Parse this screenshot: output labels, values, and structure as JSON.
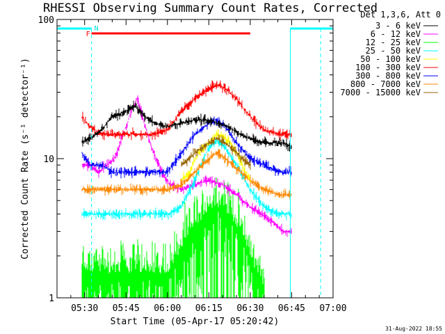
{
  "chart_data": {
    "type": "line",
    "title": "RHESSI Observing Summary Count Rates, Corrected",
    "xlabel": "Start Time (05-Apr-17 05:20:42)",
    "ylabel": "Corrected Count Rate (s⁻¹ detector⁻¹)",
    "yscale": "log",
    "ylim": [
      1,
      100
    ],
    "xlim_minutes_after_0520": [
      0,
      100
    ],
    "x_ticks": [
      {
        "label": "05:30",
        "minute": 10
      },
      {
        "label": "05:45",
        "minute": 25
      },
      {
        "label": "06:00",
        "minute": 40
      },
      {
        "label": "06:15",
        "minute": 55
      },
      {
        "label": "06:30",
        "minute": 70
      },
      {
        "label": "06:45",
        "minute": 85
      },
      {
        "label": "07:00",
        "minute": 100
      }
    ],
    "y_ticks": [
      {
        "label": "1",
        "value": 1
      },
      {
        "label": "10",
        "value": 10
      },
      {
        "label": "100",
        "value": 100
      }
    ],
    "legend_title": "Det 1,3,6, Att 0",
    "legend_position": "right",
    "data_start_minute": 9,
    "data_end_minute": 85,
    "series": [
      {
        "name": "3 - 6 keV",
        "color": "#000000",
        "x": [
          9,
          12,
          16,
          20,
          25,
          28,
          31,
          35,
          40,
          45,
          50,
          55,
          58,
          62,
          66,
          70,
          74,
          78,
          82,
          85
        ],
        "values": [
          13,
          14,
          16,
          20,
          22,
          24,
          21,
          18,
          17,
          18,
          19,
          19,
          18,
          17,
          15,
          14,
          13,
          13,
          13,
          12
        ]
      },
      {
        "name": "6 - 12 keV",
        "color": "#ff00ff",
        "x": [
          9,
          12,
          15,
          18,
          21,
          24,
          27,
          29,
          32,
          35,
          38,
          41,
          45,
          50,
          55,
          60,
          65,
          70,
          74,
          78,
          82,
          85
        ],
        "values": [
          9,
          9,
          8,
          9,
          10,
          15,
          22,
          27,
          17,
          11,
          8,
          6.5,
          6,
          6.5,
          7,
          6.5,
          5.5,
          4.5,
          4,
          3.5,
          3,
          3
        ]
      },
      {
        "name": "12 - 25 keV",
        "color": "#00ff00",
        "x": [
          9,
          15,
          20,
          25,
          30,
          35,
          40,
          45,
          50,
          55,
          58,
          61,
          65,
          69,
          72,
          75
        ],
        "values": [
          1.5,
          1.5,
          1.5,
          1.5,
          1.5,
          1.5,
          1.5,
          2.2,
          3.2,
          4.2,
          4.5,
          4.2,
          3.3,
          2.3,
          1.5,
          1.2
        ]
      },
      {
        "name": "25 - 50 keV",
        "color": "#00ffff",
        "x": [
          9,
          15,
          20,
          25,
          30,
          35,
          40,
          45,
          50,
          52,
          55,
          58,
          61,
          65,
          70,
          75,
          80,
          85
        ],
        "values": [
          4,
          4,
          4,
          4,
          4,
          4,
          4,
          4.5,
          7,
          9,
          12,
          13.5,
          12,
          9,
          6,
          4.5,
          4,
          4
        ]
      },
      {
        "name": "50 - 100 keV",
        "color": "#ffff00",
        "x": [
          45,
          48,
          51,
          55,
          58,
          61,
          64,
          67,
          70
        ],
        "values": [
          7,
          8,
          11,
          13,
          15,
          14,
          12,
          9,
          7
        ]
      },
      {
        "name": "100 - 300 keV",
        "color": "#ff0000",
        "x": [
          9,
          12,
          16,
          20,
          25,
          30,
          35,
          40,
          45,
          50,
          55,
          58,
          61,
          65,
          70,
          75,
          80,
          85
        ],
        "values": [
          20,
          17,
          15,
          15,
          15,
          15,
          15,
          16,
          22,
          27,
          32,
          34,
          32,
          27,
          20,
          16,
          15,
          15
        ]
      },
      {
        "name": "300 - 800 keV",
        "color": "#0000ff",
        "x": [
          9,
          12,
          16,
          20,
          25,
          30,
          35,
          40,
          45,
          50,
          55,
          58,
          61,
          65,
          70,
          75,
          80,
          85
        ],
        "values": [
          11,
          9,
          9,
          8,
          8,
          8,
          8,
          8,
          11,
          15,
          18,
          19,
          17,
          13,
          10,
          9,
          8,
          8
        ]
      },
      {
        "name": "800 - 7000 keV",
        "color": "#ff8800",
        "x": [
          9,
          15,
          20,
          25,
          30,
          35,
          40,
          45,
          50,
          55,
          58,
          61,
          65,
          70,
          75,
          80,
          85
        ],
        "values": [
          6,
          6,
          6,
          6,
          6,
          6,
          6,
          6.5,
          8,
          10,
          11,
          10,
          8.5,
          7,
          6,
          5.5,
          5.5
        ]
      },
      {
        "name": "7000 - 15000 keV",
        "color": "#996600",
        "x": [
          45,
          50,
          55,
          58,
          61,
          65,
          70
        ],
        "values": [
          9,
          11,
          13,
          14,
          13,
          11,
          9
        ]
      }
    ],
    "annotations": {
      "flags": [
        {
          "label": "F",
          "color": "#ff0000",
          "start_minute": 12.5,
          "end_minute": 70
        },
        {
          "label": "N",
          "color": "#00dddd",
          "start_minute": 12.5,
          "end_minute": 12.5
        }
      ],
      "night_bars": [
        {
          "start_minute": 0,
          "end_minute": 12.5
        },
        {
          "start_minute": 84.5,
          "end_minute": 100
        }
      ],
      "vlines_solid_minutes": [
        84.5
      ],
      "vlines_dashed_minutes": [
        12.5,
        95.5
      ]
    },
    "timestamp": "31-Aug-2022 18:55"
  }
}
